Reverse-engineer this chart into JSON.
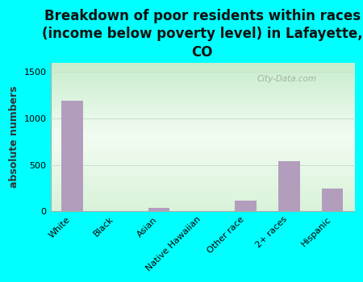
{
  "title": "Breakdown of poor residents within races\n(income below poverty level) in Lafayette,\nCO",
  "categories": [
    "White",
    "Black",
    "Asian",
    "Native Hawaiian",
    "Other race",
    "2+ races",
    "Hispanic"
  ],
  "values": [
    1195,
    0,
    40,
    0,
    115,
    545,
    250
  ],
  "bar_color": "#b39dbd",
  "ylabel": "absolute numbers",
  "ylim": [
    0,
    1600
  ],
  "yticks": [
    0,
    500,
    1000,
    1500
  ],
  "bg_outer": "#00ffff",
  "bg_plot_top_left": "#c8ecd0",
  "bg_plot_center": "#f0faf0",
  "bg_plot_bottom_right": "#d8f0d8",
  "grid_color": "#ccddcc",
  "watermark": "City-Data.com",
  "title_fontsize": 12,
  "ylabel_fontsize": 9,
  "tick_fontsize": 8
}
